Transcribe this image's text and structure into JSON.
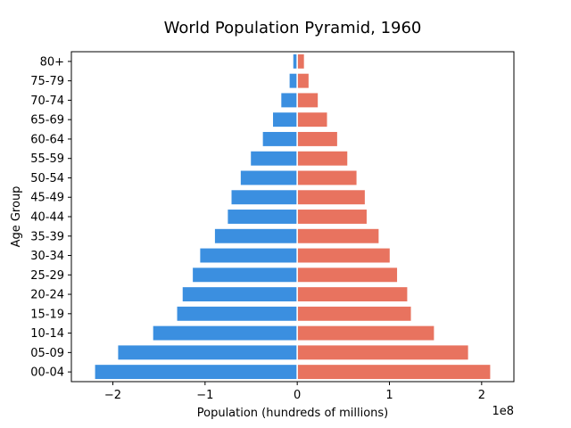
{
  "chart_data": {
    "type": "bar",
    "orientation": "horizontal",
    "title": "World Population Pyramid, 1960",
    "xlabel": "Population (hundreds of millions)",
    "ylabel": "Age Group",
    "x_offset_label": "1e8",
    "xlim": [
      -2.45,
      2.35
    ],
    "x_ticks": [
      -2,
      -1,
      0,
      1,
      2
    ],
    "x_tick_labels": [
      "−2",
      "−1",
      "0",
      "1",
      "2"
    ],
    "categories": [
      "00-04",
      "05-09",
      "10-14",
      "15-19",
      "20-24",
      "25-29",
      "30-34",
      "35-39",
      "40-44",
      "45-49",
      "50-54",
      "55-59",
      "60-64",
      "65-69",
      "70-74",
      "75-79",
      "80+"
    ],
    "series": [
      {
        "color": "#3b8fe0",
        "values": [
          -2.2,
          -1.95,
          -1.57,
          -1.31,
          -1.25,
          -1.14,
          -1.06,
          -0.9,
          -0.76,
          -0.72,
          -0.62,
          -0.51,
          -0.38,
          -0.27,
          -0.18,
          -0.09,
          -0.05
        ]
      },
      {
        "color": "#e8735f",
        "values": [
          2.1,
          1.86,
          1.49,
          1.24,
          1.2,
          1.09,
          1.01,
          0.89,
          0.76,
          0.74,
          0.65,
          0.55,
          0.44,
          0.33,
          0.23,
          0.13,
          0.08
        ]
      }
    ],
    "grid": false,
    "legend": "none"
  }
}
